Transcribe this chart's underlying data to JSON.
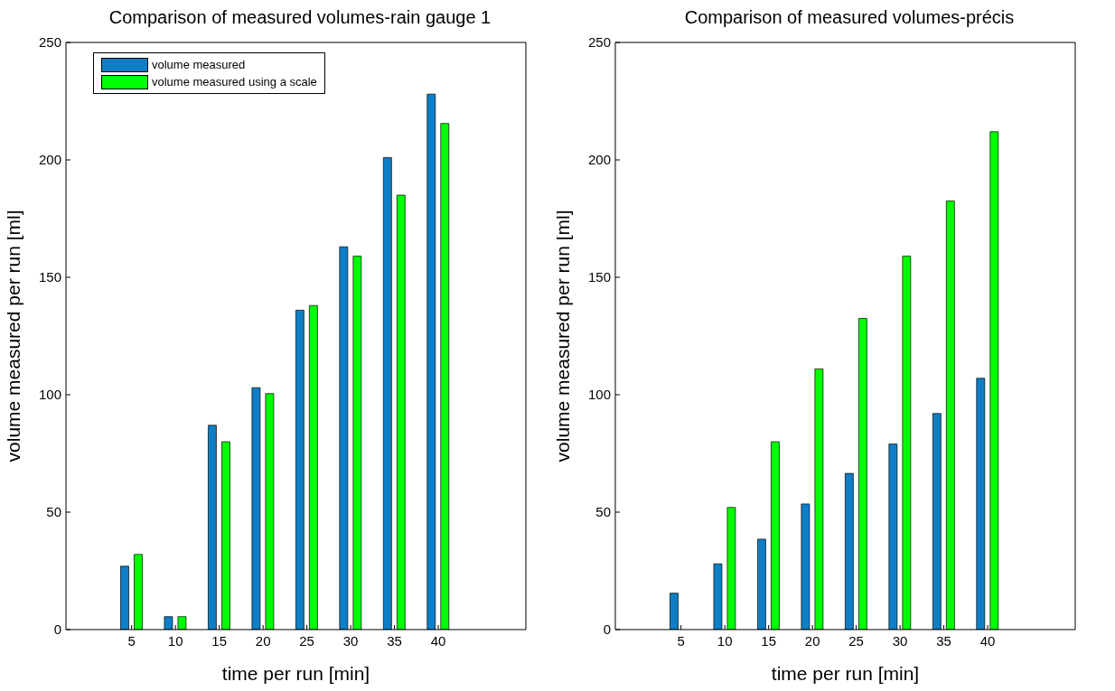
{
  "chart_data": [
    {
      "type": "bar",
      "title": "Comparison of measured volumes-rain gauge 1",
      "xlabel": "time per run [min]",
      "ylabel": "volume measured per run  [ml]",
      "x": [
        5,
        10,
        15,
        20,
        25,
        30,
        35,
        40
      ],
      "xlim": [
        -2.5,
        50
      ],
      "xticks": [
        5,
        10,
        15,
        20,
        25,
        30,
        35,
        40
      ],
      "ylim": [
        0,
        250
      ],
      "yticks": [
        0,
        50,
        100,
        150,
        200,
        250
      ],
      "grid": false,
      "legend": "top left",
      "series": [
        {
          "name": "volume measured",
          "color": "#0e7fc6",
          "values": [
            27,
            5.5,
            87,
            103,
            136,
            163,
            201,
            228
          ]
        },
        {
          "name": "volume measured using a scale",
          "color": "#00ff00",
          "values": [
            32,
            5.5,
            80,
            100.5,
            138,
            159,
            185,
            215.5
          ]
        }
      ]
    },
    {
      "type": "bar",
      "title": "Comparison of measured volumes-précis",
      "xlabel": "time per run [min]",
      "ylabel": "volume measured per run  [ml]",
      "x": [
        5,
        10,
        15,
        20,
        25,
        30,
        35,
        40
      ],
      "xlim": [
        -2.5,
        50
      ],
      "xticks": [
        5,
        10,
        15,
        20,
        25,
        30,
        35,
        40
      ],
      "ylim": [
        0,
        250
      ],
      "yticks": [
        0,
        50,
        100,
        150,
        200,
        250
      ],
      "grid": false,
      "legend": false,
      "series": [
        {
          "color": "#0e7fc6",
          "values": [
            15.5,
            28,
            38.5,
            53.5,
            66.5,
            79,
            92,
            107
          ]
        },
        {
          "color": "#00ff00",
          "values": [
            0,
            52,
            80,
            111,
            132.5,
            159,
            182.5,
            212
          ]
        }
      ]
    }
  ]
}
